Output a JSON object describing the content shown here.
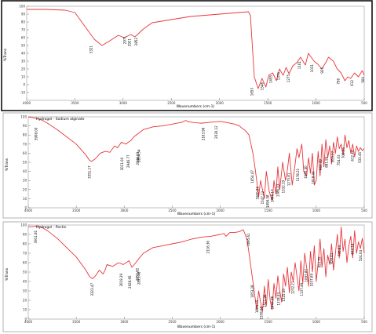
{
  "chart_data": [
    {
      "type": "line",
      "title": "",
      "xlabel": "Wavenumbers (cm-1)",
      "ylabel": "%Trans",
      "xlim": [
        4000,
        500
      ],
      "ylim": [
        -20,
        100
      ],
      "y_ticks": [
        100,
        90,
        80,
        70,
        60,
        50,
        40,
        30,
        20,
        10,
        0,
        -10
      ],
      "x_ticks": [
        4000,
        3500,
        3000,
        2500,
        2000,
        1500,
        1000,
        500
      ],
      "color": "#e8363b",
      "series": [
        {
          "x": [
            4000,
            3800,
            3600,
            3500,
            3400,
            3300,
            3220,
            3150,
            3050,
            2990,
            2920,
            2880,
            2850,
            2800,
            2700,
            2600,
            2500,
            2400,
            2300,
            2200,
            2100,
            2000,
            1900,
            1800,
            1700,
            1680,
            1640,
            1600,
            1560,
            1520,
            1490,
            1450,
            1410,
            1380,
            1340,
            1310,
            1280,
            1240,
            1200,
            1160,
            1110,
            1080,
            1020,
            980,
            940,
            900,
            870,
            820,
            780,
            740,
            700,
            670,
            640,
            600,
            560,
            520,
            500
          ],
          "y": [
            96,
            96,
            95,
            92,
            75,
            58,
            50,
            55,
            63,
            60,
            64,
            61,
            64,
            70,
            79,
            81,
            83,
            85,
            87,
            88,
            89,
            90,
            91,
            92,
            93,
            88,
            10,
            -5,
            8,
            -3,
            12,
            15,
            5,
            20,
            12,
            22,
            14,
            24,
            28,
            35,
            25,
            40,
            30,
            26,
            20,
            28,
            35,
            30,
            20,
            15,
            5,
            10,
            8,
            15,
            10,
            18,
            12
          ]
        }
      ],
      "peak_labels": [
        {
          "x": 3321,
          "y": 52,
          "text": "3321"
        },
        {
          "x": 2921,
          "y": 61,
          "text": "2921"
        },
        {
          "x": 2852,
          "y": 62,
          "text": "2852"
        },
        {
          "x": 2971,
          "y": 64,
          "text": "2971"
        },
        {
          "x": 1653,
          "y": -2,
          "text": "1653"
        },
        {
          "x": 1546,
          "y": 5,
          "text": "1546"
        },
        {
          "x": 1455,
          "y": 14,
          "text": "1455"
        },
        {
          "x": 1375,
          "y": 18,
          "text": "1375"
        },
        {
          "x": 1275,
          "y": 15,
          "text": "1275"
        },
        {
          "x": 1161,
          "y": 32,
          "text": "1161"
        },
        {
          "x": 1031,
          "y": 28,
          "text": "1031"
        },
        {
          "x": 925,
          "y": 24,
          "text": "925"
        },
        {
          "x": 756,
          "y": 10,
          "text": "756"
        },
        {
          "x": 612,
          "y": 8,
          "text": "612"
        },
        {
          "x": 500,
          "y": 12,
          "text": "500"
        }
      ]
    },
    {
      "type": "line",
      "title": "",
      "legend_text": "Hydrogel - Sodium alginate",
      "xlabel": "Wavenumbers (cm-1)",
      "ylabel": "%Trans",
      "xlim": [
        4000,
        500
      ],
      "ylim": [
        0,
        100
      ],
      "y_ticks": [
        100,
        90,
        80,
        70,
        60,
        50,
        40,
        30,
        20,
        10,
        0
      ],
      "x_ticks": [
        4000,
        3500,
        3000,
        2500,
        2000,
        1500,
        1000,
        500
      ],
      "color": "#e8363b",
      "series": [
        {
          "x": [
            4000,
            3900,
            3850,
            3800,
            3700,
            3600,
            3500,
            3400,
            3360,
            3340,
            3300,
            3250,
            3200,
            3150,
            3100,
            3070,
            3030,
            2980,
            2960,
            2930,
            2900,
            2850,
            2800,
            2700,
            2600,
            2500,
            2400,
            2360,
            2340,
            2300,
            2200,
            2100,
            2000,
            1950,
            1900,
            1850,
            1800,
            1780,
            1740,
            1700,
            1680,
            1660,
            1640,
            1620,
            1600,
            1580,
            1560,
            1540,
            1520,
            1490,
            1460,
            1440,
            1420,
            1400,
            1380,
            1350,
            1320,
            1300,
            1280,
            1250,
            1220,
            1200,
            1180,
            1150,
            1130,
            1100,
            1080,
            1060,
            1040,
            1020,
            1000,
            980,
            960,
            940,
            920,
            900,
            880,
            860,
            840,
            820,
            800,
            780,
            760,
            740,
            720,
            700,
            680,
            660,
            640,
            620,
            600,
            580,
            560,
            540,
            520,
            500
          ],
          "y": [
            100,
            98,
            96,
            93,
            86,
            78,
            70,
            58,
            52,
            51,
            54,
            60,
            62,
            61,
            68,
            66,
            72,
            70,
            72,
            74,
            78,
            82,
            86,
            89,
            90,
            92,
            94,
            96,
            95,
            94,
            93,
            94,
            95,
            94,
            93,
            92,
            90,
            88,
            85,
            80,
            70,
            60,
            46,
            30,
            12,
            30,
            20,
            10,
            40,
            18,
            8,
            30,
            15,
            45,
            20,
            50,
            30,
            42,
            60,
            25,
            48,
            65,
            55,
            70,
            40,
            35,
            55,
            38,
            60,
            25,
            30,
            62,
            35,
            70,
            45,
            75,
            55,
            68,
            48,
            72,
            60,
            78,
            65,
            70,
            58,
            80,
            66,
            74,
            60,
            70,
            56,
            68,
            62,
            66,
            63,
            65
          ]
        }
      ],
      "peak_labels": [
        {
          "x": 3906,
          "y": 90,
          "text": "3906.00"
        },
        {
          "x": 3351,
          "y": 48,
          "text": "3351.17"
        },
        {
          "x": 3011,
          "y": 57,
          "text": "3011.00"
        },
        {
          "x": 2946,
          "y": 60,
          "text": "2946.77"
        },
        {
          "x": 2848,
          "y": 63,
          "text": "2848.03"
        },
        {
          "x": 2834,
          "y": 66,
          "text": "2834.54"
        },
        {
          "x": 2163,
          "y": 90,
          "text": "2163.96"
        },
        {
          "x": 2030,
          "y": 92,
          "text": "2030.12"
        },
        {
          "x": 1654,
          "y": 43,
          "text": "1654.47"
        },
        {
          "x": 1600,
          "y": 25,
          "text": "1600.86"
        },
        {
          "x": 1547,
          "y": 20,
          "text": "1547.12"
        },
        {
          "x": 1494,
          "y": 16,
          "text": "1494.58"
        },
        {
          "x": 1446,
          "y": 22,
          "text": "1446.17"
        },
        {
          "x": 1386,
          "y": 28,
          "text": "1386.03"
        },
        {
          "x": 1332,
          "y": 32,
          "text": "1332.19"
        },
        {
          "x": 1273,
          "y": 40,
          "text": "1273.81"
        },
        {
          "x": 1178,
          "y": 45,
          "text": "1178.21"
        },
        {
          "x": 1095,
          "y": 48,
          "text": "1095.40"
        },
        {
          "x": 1018,
          "y": 42,
          "text": "1018.05"
        },
        {
          "x": 943,
          "y": 55,
          "text": "943.49"
        },
        {
          "x": 881,
          "y": 58,
          "text": "881.90"
        },
        {
          "x": 815,
          "y": 64,
          "text": "815.27"
        },
        {
          "x": 754,
          "y": 60,
          "text": "754.03"
        },
        {
          "x": 706,
          "y": 68,
          "text": "706.56"
        },
        {
          "x": 612,
          "y": 65,
          "text": "612.44"
        },
        {
          "x": 533,
          "y": 63,
          "text": "533.45"
        }
      ]
    },
    {
      "type": "line",
      "title": "",
      "legend_text": "Hydrogel - Pectin",
      "xlabel": "Wavenumbers (cm-1)",
      "ylabel": "%Trans",
      "xlim": [
        4000,
        500
      ],
      "ylim": [
        0,
        100
      ],
      "y_ticks": [
        100,
        90,
        80,
        70,
        60,
        50,
        40,
        30,
        20,
        10,
        0
      ],
      "x_ticks": [
        4000,
        3500,
        3000,
        2500,
        2000,
        1500,
        1000,
        500
      ],
      "color": "#e8363b",
      "series": [
        {
          "x": [
            4000,
            3900,
            3850,
            3800,
            3700,
            3600,
            3500,
            3400,
            3360,
            3330,
            3300,
            3260,
            3220,
            3200,
            3180,
            3120,
            3060,
            3010,
            2980,
            2950,
            2920,
            2880,
            2850,
            2800,
            2700,
            2600,
            2500,
            2400,
            2300,
            2200,
            2100,
            2000,
            1960,
            1940,
            1920,
            1900,
            1850,
            1800,
            1780,
            1760,
            1740,
            1720,
            1700,
            1680,
            1660,
            1640,
            1620,
            1600,
            1580,
            1560,
            1540,
            1520,
            1500,
            1480,
            1460,
            1440,
            1420,
            1400,
            1380,
            1360,
            1340,
            1320,
            1300,
            1280,
            1260,
            1240,
            1220,
            1200,
            1180,
            1160,
            1140,
            1120,
            1100,
            1080,
            1060,
            1040,
            1020,
            1000,
            980,
            960,
            940,
            920,
            900,
            880,
            860,
            840,
            820,
            800,
            780,
            760,
            740,
            720,
            700,
            680,
            660,
            640,
            620,
            600,
            580,
            560,
            540,
            520,
            500
          ],
          "y": [
            98,
            99,
            97,
            94,
            86,
            76,
            66,
            52,
            45,
            43,
            46,
            52,
            48,
            52,
            58,
            56,
            60,
            58,
            60,
            62,
            55,
            60,
            64,
            70,
            76,
            78,
            80,
            82,
            85,
            87,
            88,
            90,
            91,
            88,
            90,
            92,
            92,
            93,
            94,
            95,
            90,
            84,
            70,
            55,
            40,
            25,
            10,
            30,
            18,
            8,
            35,
            14,
            42,
            20,
            10,
            38,
            22,
            46,
            30,
            18,
            48,
            35,
            55,
            28,
            50,
            40,
            60,
            45,
            30,
            62,
            38,
            70,
            55,
            35,
            72,
            50,
            78,
            40,
            60,
            85,
            55,
            75,
            45,
            68,
            58,
            80,
            52,
            70,
            90,
            65,
            98,
            72,
            85,
            60,
            78,
            88,
            65,
            94,
            70,
            82,
            75,
            86,
            70
          ]
        }
      ],
      "peak_labels": [
        {
          "x": 3911,
          "y": 96,
          "text": "3911.81"
        },
        {
          "x": 3323,
          "y": 40,
          "text": "3323.47"
        },
        {
          "x": 3019,
          "y": 50,
          "text": "3019.39"
        },
        {
          "x": 2928,
          "y": 48,
          "text": "2928.95"
        },
        {
          "x": 2853,
          "y": 56,
          "text": "2853.82"
        },
        {
          "x": 2833,
          "y": 52,
          "text": "2833.48"
        },
        {
          "x": 2116,
          "y": 85,
          "text": "2116.36"
        },
        {
          "x": 1695,
          "y": 93,
          "text": "1695.61"
        },
        {
          "x": 1653,
          "y": 38,
          "text": "1653.28"
        },
        {
          "x": 1604,
          "y": 22,
          "text": "1604.15"
        },
        {
          "x": 1559,
          "y": 15,
          "text": "1559.08"
        },
        {
          "x": 1521,
          "y": 28,
          "text": "1521.96"
        },
        {
          "x": 1444,
          "y": 26,
          "text": "1444.86"
        },
        {
          "x": 1378,
          "y": 30,
          "text": "1378.93"
        },
        {
          "x": 1325,
          "y": 34,
          "text": "1325.49"
        },
        {
          "x": 1232,
          "y": 42,
          "text": "1232.21"
        },
        {
          "x": 1137,
          "y": 40,
          "text": "1137.49"
        },
        {
          "x": 1093,
          "y": 55,
          "text": "1093.82"
        },
        {
          "x": 1037,
          "y": 50,
          "text": "1037.69"
        },
        {
          "x": 953,
          "y": 68,
          "text": "953.95"
        },
        {
          "x": 828,
          "y": 72,
          "text": "828.61"
        },
        {
          "x": 745,
          "y": 80,
          "text": "745.84"
        },
        {
          "x": 612,
          "y": 82,
          "text": "612.14"
        },
        {
          "x": 524,
          "y": 75,
          "text": "524.04"
        }
      ]
    }
  ]
}
